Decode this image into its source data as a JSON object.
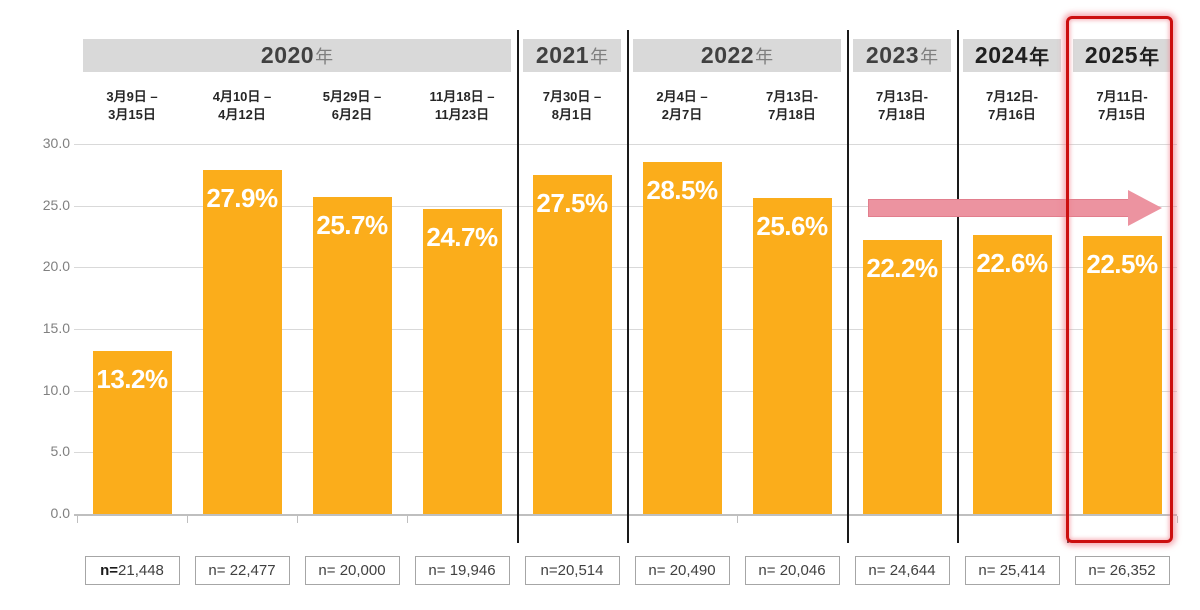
{
  "chart_data": {
    "type": "bar",
    "title": "",
    "xlabel": "",
    "ylabel": "",
    "unit": "%",
    "ylim": [
      0,
      30
    ],
    "ytick_labels": [
      "0.0",
      "5.0",
      "10.0",
      "15.0",
      "20.0",
      "25.0",
      "30.0"
    ],
    "grid": true,
    "groups": [
      {
        "year": "2020",
        "year_suffix": "年",
        "emphasis": false,
        "columns": [
          {
            "date_line1": "3月9日 –",
            "date_line2": "3月15日",
            "value": 13.2,
            "value_label": "13.2%",
            "n_label": "n=21,448",
            "n_bold_prefix": true
          },
          {
            "date_line1": "4月10日 –",
            "date_line2": "4月12日",
            "value": 27.9,
            "value_label": "27.9%",
            "n_label": "n= 22,477",
            "n_bold_prefix": false
          },
          {
            "date_line1": "5月29日 –",
            "date_line2": "6月2日",
            "value": 25.7,
            "value_label": "25.7%",
            "n_label": "n= 20,000",
            "n_bold_prefix": false
          },
          {
            "date_line1": "11月18日 –",
            "date_line2": "11月23日",
            "value": 24.7,
            "value_label": "24.7%",
            "n_label": "n= 19,946",
            "n_bold_prefix": false
          }
        ]
      },
      {
        "year": "2021",
        "year_suffix": "年",
        "emphasis": false,
        "columns": [
          {
            "date_line1": "7月30日 –",
            "date_line2": "8月1日",
            "value": 27.5,
            "value_label": "27.5%",
            "n_label": "n=20,514",
            "n_bold_prefix": false
          }
        ]
      },
      {
        "year": "2022",
        "year_suffix": "年",
        "emphasis": false,
        "columns": [
          {
            "date_line1": "2月4日 –",
            "date_line2": "2月7日",
            "value": 28.5,
            "value_label": "28.5%",
            "n_label": "n= 20,490",
            "n_bold_prefix": false
          },
          {
            "date_line1": "7月13日-",
            "date_line2": "7月18日",
            "value": 25.6,
            "value_label": "25.6%",
            "n_label": "n= 20,046",
            "n_bold_prefix": false
          }
        ]
      },
      {
        "year": "2023",
        "year_suffix": "年",
        "emphasis": false,
        "columns": [
          {
            "date_line1": "7月13日-",
            "date_line2": "7月18日",
            "value": 22.2,
            "value_label": "22.2%",
            "n_label": "n= 24,644",
            "n_bold_prefix": false
          }
        ]
      },
      {
        "year": "2024",
        "year_suffix": "年",
        "emphasis": true,
        "columns": [
          {
            "date_line1": "7月12日-",
            "date_line2": "7月16日",
            "value": 22.6,
            "value_label": "22.6%",
            "n_label": "n= 25,414",
            "n_bold_prefix": false
          }
        ]
      },
      {
        "year": "2025",
        "year_suffix": "年",
        "emphasis": true,
        "highlighted": true,
        "columns": [
          {
            "date_line1": "7月11日-",
            "date_line2": "7月15日",
            "value": 22.5,
            "value_label": "22.5%",
            "n_label": "n= 26,352",
            "n_bold_prefix": false
          }
        ]
      }
    ],
    "annotations": {
      "trend_arrow": {
        "spans_years": [
          "2023",
          "2024",
          "2025"
        ],
        "at_value": 25.0,
        "direction": "right"
      },
      "highlight_box": {
        "year": "2025"
      }
    },
    "colors": {
      "bar": "#fbad1b",
      "header_bg": "#d9d9d9",
      "year_text": "#404040",
      "year_suffix_text": "#7f7f7f",
      "emphasis_text": "#1f1f1f",
      "grid_line": "#d9d9d9",
      "axis_line": "#bfbfbf",
      "tick_label_text": "#808080",
      "date_text": "#262626",
      "n_box_border": "#a6a6a6",
      "n_box_text": "#404040",
      "divider": "#1a1a1a",
      "bar_value_text": "#ffffff",
      "arrow_fill": "#ec93a0",
      "arrow_edge": "#e27e8d",
      "highlight_border": "#cc0f0f",
      "highlight_glow": "rgba(240,128,140,0.65)"
    }
  }
}
